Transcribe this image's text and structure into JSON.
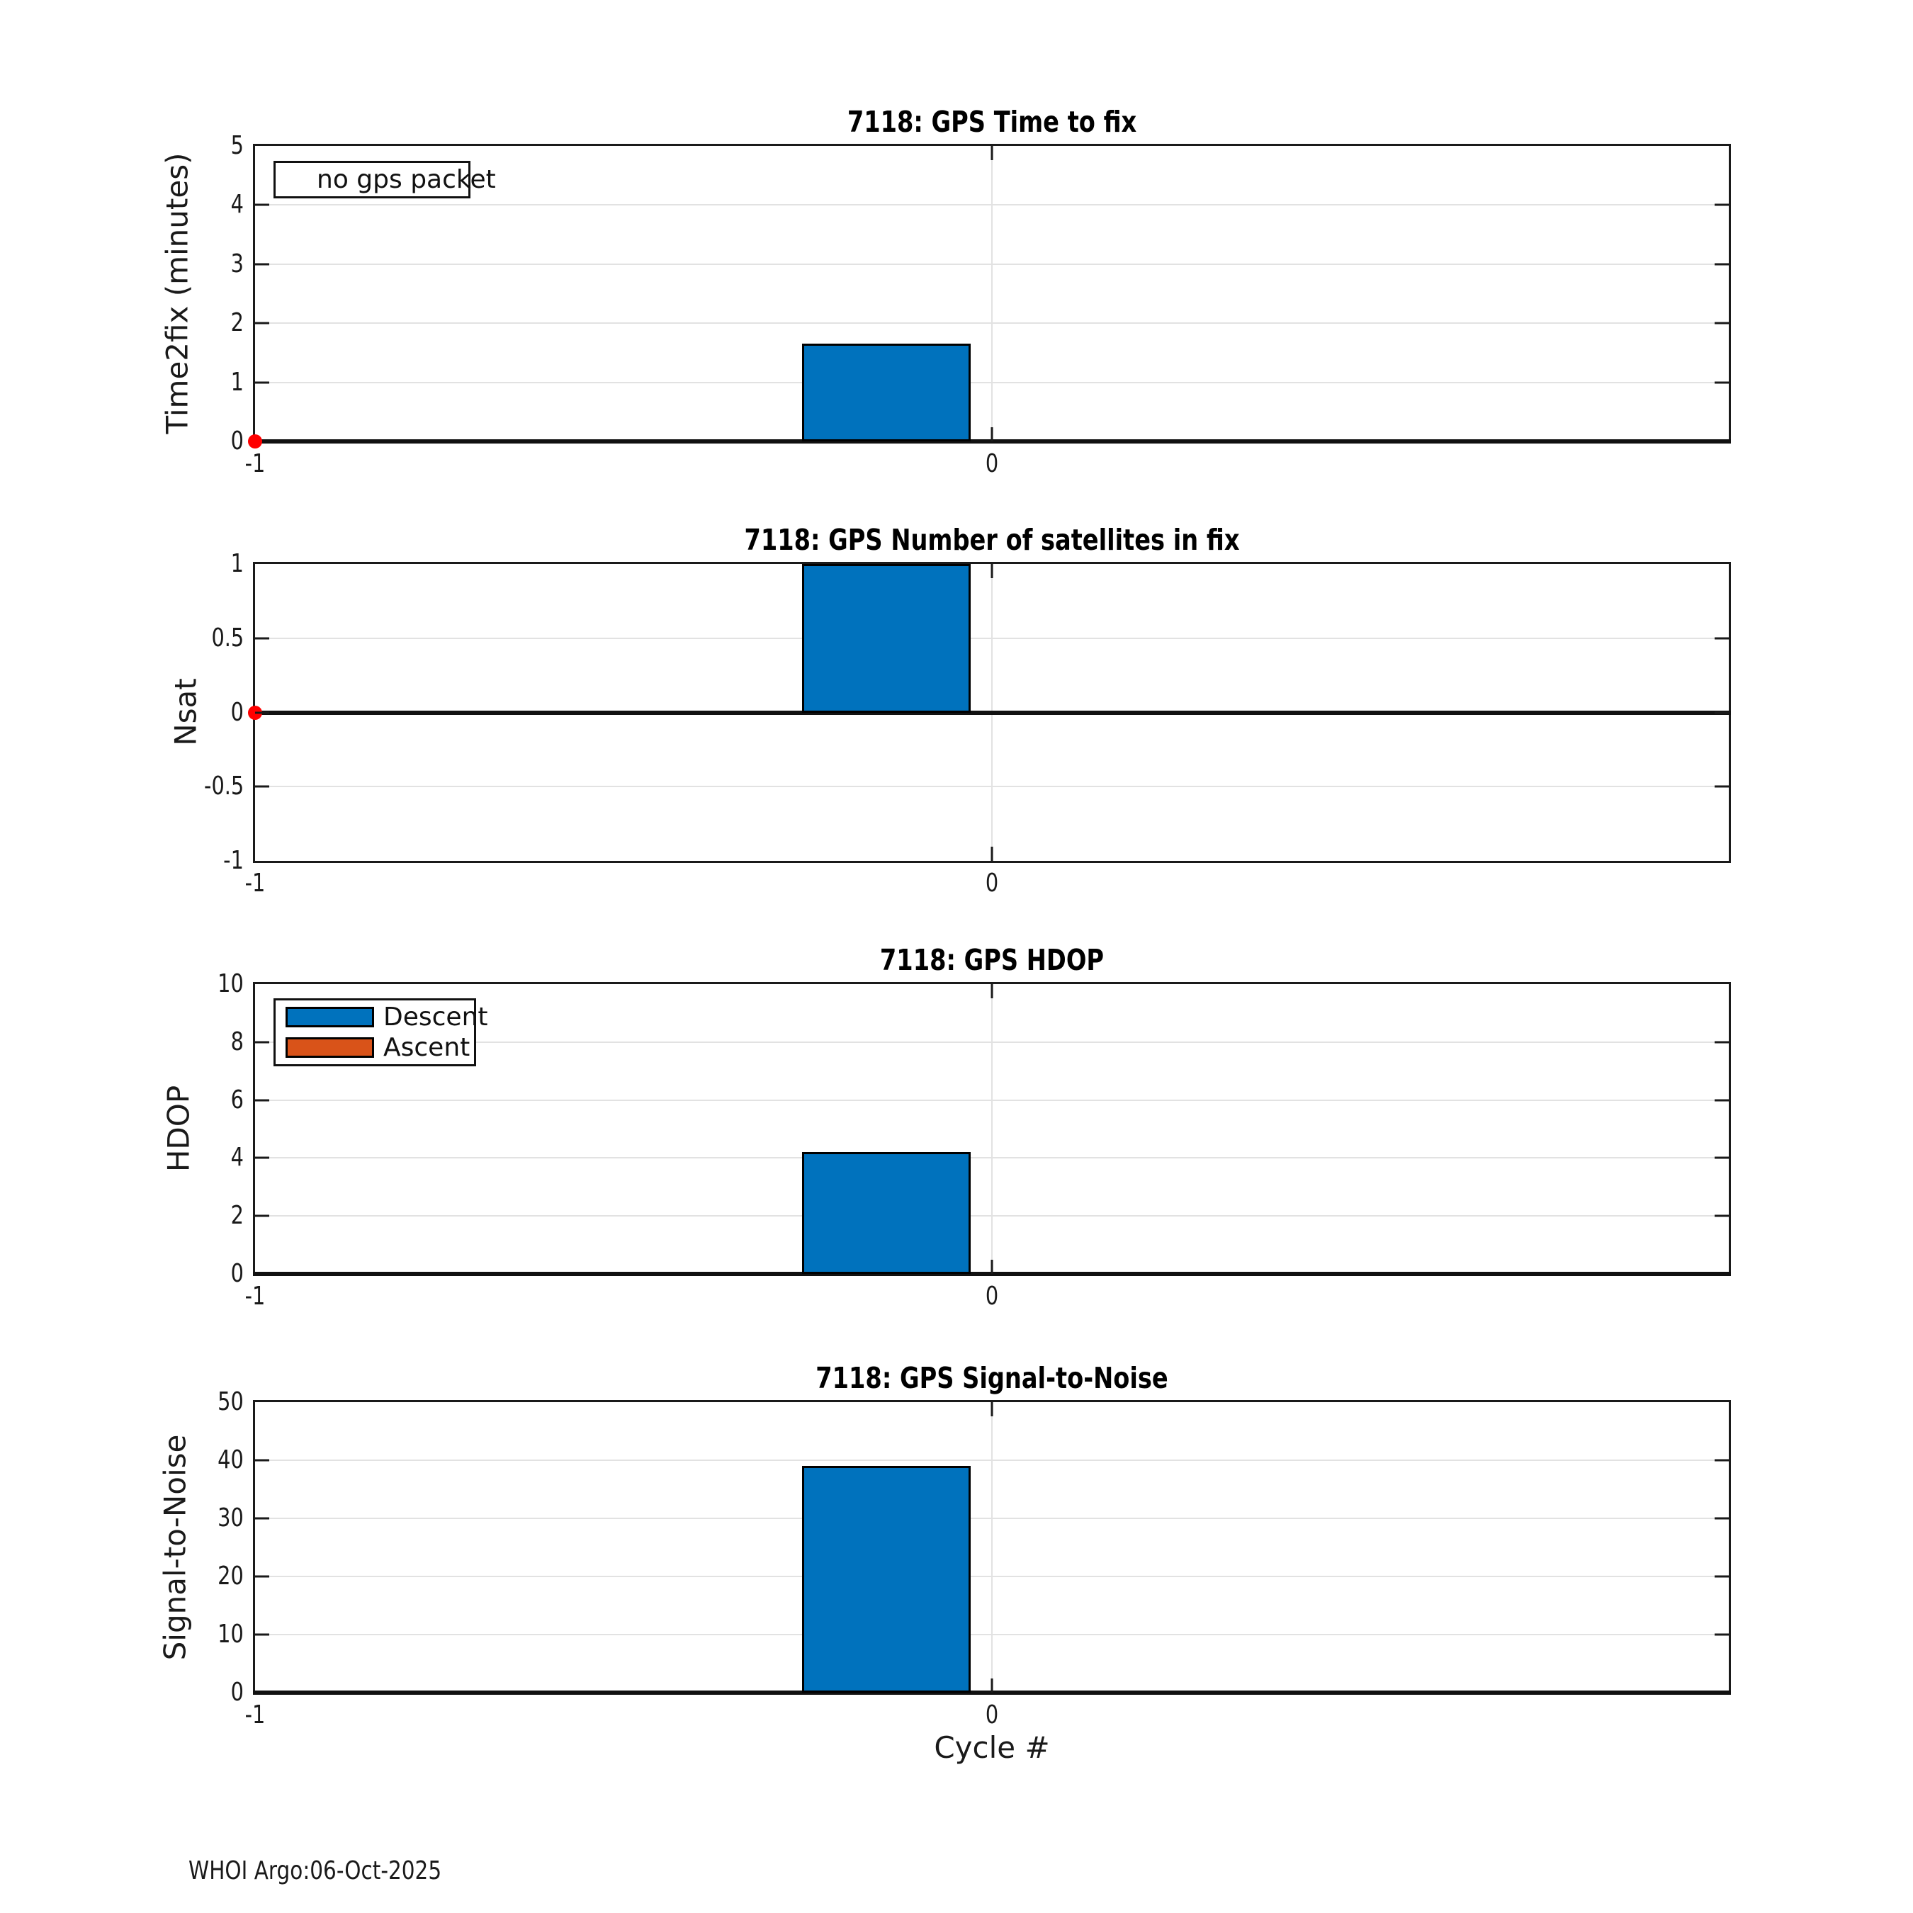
{
  "figure": {
    "float_id": "7118",
    "footer": "WHOI Argo:06-Oct-2025",
    "xlabel": "Cycle #",
    "background": "#ffffff"
  },
  "colors": {
    "descent_blue": "#0072BD",
    "ascent_orange": "#D95319",
    "no_gps_red": "#FF0000",
    "axis_dark": "#1a1a1a",
    "grid_gray": "#e2e2e2"
  },
  "chart_data": [
    {
      "type": "bar",
      "title": "7118: GPS Time to fix",
      "ylabel": "Time2fix (minutes)",
      "xlabel": "",
      "ylim": [
        0,
        5
      ],
      "yticks": [
        0,
        1,
        2,
        3,
        4,
        5
      ],
      "ytick_labels": [
        "0",
        "1",
        "2",
        "3",
        "4",
        "5"
      ],
      "xlim": [
        -1,
        1
      ],
      "xticks": [
        -1,
        0
      ],
      "xtick_labels": [
        "-1",
        "0"
      ],
      "grid": true,
      "bar_center_offset": -0.143,
      "bar_width": 0.229,
      "series": [
        {
          "name": "Descent",
          "color": "#0072BD",
          "x": [
            0
          ],
          "values": [
            1.65
          ]
        },
        {
          "name": "Ascent",
          "color": "#D95319",
          "x": [],
          "values": []
        }
      ],
      "markers": [
        {
          "label": "no gps packet",
          "color": "#FF0000",
          "x": -1,
          "y": 0
        }
      ],
      "legend": {
        "position": "top-left",
        "entries": [
          {
            "label": "no gps packet",
            "marker": "red-dot"
          }
        ]
      }
    },
    {
      "type": "bar",
      "title": "7118: GPS Number of satellites in fix",
      "ylabel": "Nsat",
      "xlabel": "",
      "ylim": [
        -1,
        1
      ],
      "yticks": [
        -1,
        -0.5,
        0,
        0.5,
        1
      ],
      "ytick_labels": [
        "-1",
        "-0.5",
        "0",
        "0.5",
        "1"
      ],
      "xlim": [
        -1,
        1
      ],
      "xticks": [
        -1,
        0
      ],
      "xtick_labels": [
        "-1",
        "0"
      ],
      "grid": true,
      "bar_center_offset": -0.143,
      "bar_width": 0.229,
      "series": [
        {
          "name": "Descent",
          "color": "#0072BD",
          "x": [
            0
          ],
          "values": [
            1
          ]
        },
        {
          "name": "Ascent",
          "color": "#D95319",
          "x": [],
          "values": []
        }
      ],
      "markers": [
        {
          "label": "no gps packet",
          "color": "#FF0000",
          "x": -1,
          "y": 0
        }
      ],
      "legend": {
        "position": "none",
        "entries": []
      }
    },
    {
      "type": "bar",
      "title": "7118: GPS HDOP",
      "ylabel": "HDOP",
      "xlabel": "",
      "ylim": [
        0,
        10
      ],
      "yticks": [
        0,
        2,
        4,
        6,
        8,
        10
      ],
      "ytick_labels": [
        "0",
        "2",
        "4",
        "6",
        "8",
        "10"
      ],
      "xlim": [
        -1,
        1
      ],
      "xticks": [
        -1,
        0
      ],
      "xtick_labels": [
        "-1",
        "0"
      ],
      "grid": true,
      "bar_center_offset": -0.143,
      "bar_width": 0.229,
      "series": [
        {
          "name": "Descent",
          "color": "#0072BD",
          "x": [
            0
          ],
          "values": [
            4.2
          ]
        },
        {
          "name": "Ascent",
          "color": "#D95319",
          "x": [],
          "values": []
        }
      ],
      "markers": [],
      "legend": {
        "position": "top-left",
        "entries": [
          {
            "label": "Descent",
            "swatch": "#0072BD"
          },
          {
            "label": "Ascent",
            "swatch": "#D95319"
          }
        ]
      }
    },
    {
      "type": "bar",
      "title": "7118: GPS Signal-to-Noise",
      "ylabel": "Signal-to-Noise",
      "xlabel": "Cycle #",
      "ylim": [
        0,
        50
      ],
      "yticks": [
        0,
        10,
        20,
        30,
        40,
        50
      ],
      "ytick_labels": [
        "0",
        "10",
        "20",
        "30",
        "40",
        "50"
      ],
      "xlim": [
        -1,
        1
      ],
      "xticks": [
        -1,
        0
      ],
      "xtick_labels": [
        "-1",
        "0"
      ],
      "grid": true,
      "bar_center_offset": -0.143,
      "bar_width": 0.229,
      "series": [
        {
          "name": "Descent",
          "color": "#0072BD",
          "x": [
            0
          ],
          "values": [
            39
          ]
        },
        {
          "name": "Ascent",
          "color": "#D95319",
          "x": [],
          "values": []
        }
      ],
      "markers": [],
      "legend": {
        "position": "none",
        "entries": []
      }
    }
  ]
}
